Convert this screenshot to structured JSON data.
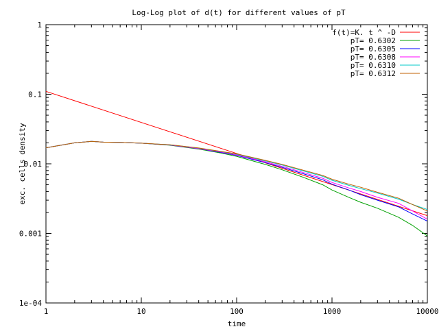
{
  "chart_data": {
    "type": "line",
    "title": "Log-Log plot of d(t) for different values of pT",
    "xlabel": "time",
    "ylabel": "exc. cells density",
    "xscale": "log",
    "yscale": "log",
    "xlim": [
      1,
      10000
    ],
    "ylim": [
      0.0001,
      1
    ],
    "grid": false,
    "legend_position": "top-right",
    "x_ticks": [
      {
        "value": 1,
        "label": "1"
      },
      {
        "value": 10,
        "label": "10"
      },
      {
        "value": 100,
        "label": "100"
      },
      {
        "value": 1000,
        "label": "1000"
      },
      {
        "value": 10000,
        "label": "10000"
      }
    ],
    "y_ticks": [
      {
        "value": 0.0001,
        "label": "1e-04"
      },
      {
        "value": 0.001,
        "label": "0.001"
      },
      {
        "value": 0.01,
        "label": "0.01"
      },
      {
        "value": 0.1,
        "label": "0.1"
      },
      {
        "value": 1,
        "label": "1"
      }
    ],
    "series": [
      {
        "name": "f(t)=K. t ^ -D",
        "color": "#ff0000",
        "x": [
          1,
          10000
        ],
        "y": [
          0.11,
          0.0018
        ]
      },
      {
        "name": "pT= 0.6302",
        "color": "#00a000",
        "x": [
          1,
          2,
          3,
          4,
          6,
          10,
          20,
          40,
          70,
          100,
          200,
          300,
          500,
          800,
          1000,
          1500,
          2000,
          3000,
          5000,
          7000,
          10000
        ],
        "y": [
          0.017,
          0.02,
          0.021,
          0.0205,
          0.0203,
          0.0198,
          0.0185,
          0.0163,
          0.0142,
          0.0128,
          0.0098,
          0.0082,
          0.0064,
          0.005,
          0.0042,
          0.0033,
          0.0028,
          0.0023,
          0.0017,
          0.0013,
          0.00092
        ]
      },
      {
        "name": "pT= 0.6305",
        "color": "#0000ff",
        "x": [
          1,
          2,
          3,
          4,
          6,
          10,
          20,
          40,
          70,
          100,
          200,
          300,
          500,
          800,
          1000,
          1500,
          2000,
          3000,
          5000,
          7000,
          10000
        ],
        "y": [
          0.017,
          0.02,
          0.021,
          0.0205,
          0.0203,
          0.0198,
          0.0186,
          0.0165,
          0.0145,
          0.0132,
          0.0104,
          0.0089,
          0.0072,
          0.0059,
          0.0051,
          0.0042,
          0.0036,
          0.003,
          0.0024,
          0.0019,
          0.0015
        ]
      },
      {
        "name": "pT= 0.6308",
        "color": "#ff00ff",
        "x": [
          1,
          2,
          3,
          4,
          6,
          10,
          20,
          40,
          70,
          100,
          200,
          300,
          500,
          800,
          1000,
          1500,
          2000,
          3000,
          5000,
          7000,
          10000
        ],
        "y": [
          0.017,
          0.02,
          0.021,
          0.0205,
          0.0203,
          0.0198,
          0.0187,
          0.0166,
          0.0147,
          0.0134,
          0.0107,
          0.0092,
          0.0075,
          0.0062,
          0.0054,
          0.0045,
          0.004,
          0.0033,
          0.0027,
          0.0021,
          0.0016
        ]
      },
      {
        "name": "pT= 0.6310",
        "color": "#00c8c8",
        "x": [
          1,
          2,
          3,
          4,
          6,
          10,
          20,
          40,
          70,
          100,
          200,
          300,
          500,
          800,
          1000,
          1500,
          2000,
          3000,
          5000,
          7000,
          10000
        ],
        "y": [
          0.017,
          0.02,
          0.021,
          0.0205,
          0.0203,
          0.0198,
          0.0188,
          0.0168,
          0.0149,
          0.0137,
          0.011,
          0.0096,
          0.0079,
          0.0066,
          0.0058,
          0.0049,
          0.0044,
          0.0038,
          0.0031,
          0.0026,
          0.0022
        ]
      },
      {
        "name": "pT= 0.6312",
        "color": "#c06000",
        "x": [
          1,
          2,
          3,
          4,
          6,
          10,
          20,
          40,
          70,
          100,
          200,
          300,
          500,
          800,
          1000,
          1500,
          2000,
          3000,
          5000,
          7000,
          10000
        ],
        "y": [
          0.017,
          0.02,
          0.021,
          0.0205,
          0.0203,
          0.0198,
          0.0188,
          0.0169,
          0.015,
          0.0139,
          0.0112,
          0.0098,
          0.0081,
          0.0068,
          0.006,
          0.0051,
          0.0046,
          0.0039,
          0.0032,
          0.0026,
          0.0021
        ]
      }
    ]
  }
}
